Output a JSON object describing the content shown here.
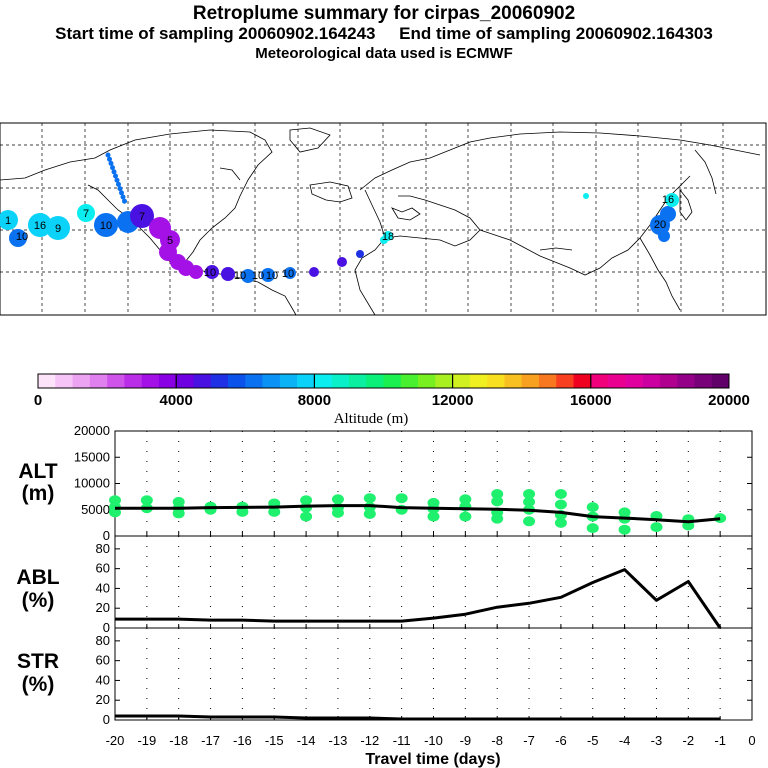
{
  "header": {
    "title": "Retroplume summary for cirpas_20060902",
    "start_label": "Start time of sampling 20060902.164243",
    "end_label": "End time of sampling 20060902.164303",
    "met_label": "Meteorological data used is ECMWF"
  },
  "colorbar": {
    "ticks": [
      "0",
      "4000",
      "8000",
      "12000",
      "16000",
      "20000"
    ],
    "label": "Altitude (m)",
    "min": 0,
    "max": 20000,
    "colors": [
      "#fde3f9",
      "#f6c4f6",
      "#eca3f2",
      "#e07fee",
      "#cf55ea",
      "#bb2ee8",
      "#a411e6",
      "#8a00e4",
      "#6e00e2",
      "#4a12e2",
      "#2030e4",
      "#0a52ea",
      "#0a72f0",
      "#0a92f4",
      "#0ab2f6",
      "#0ad2f8",
      "#0aeef0",
      "#0af0c8",
      "#0af0a0",
      "#0af078",
      "#1af050",
      "#48f030",
      "#78f020",
      "#a8f020",
      "#d0f020",
      "#f0f020",
      "#f8e020",
      "#f8c020",
      "#f8a020",
      "#f87820",
      "#f84020",
      "#f00020",
      "#f0007a",
      "#ea0090",
      "#e000a0",
      "#cc00a0",
      "#b00090",
      "#940088",
      "#780078",
      "#600068"
    ]
  },
  "map": {
    "point_labels": [
      "1",
      "10",
      "16",
      "9",
      "7",
      "10",
      "7",
      "5",
      "10",
      "10",
      "10",
      "10",
      "10",
      "18",
      "16",
      "20"
    ],
    "point_colors": [
      "#0ad2f8",
      "#0a72f0",
      "#4a12e2",
      "#a411e6",
      "#0aeef0",
      "#0a52ea",
      "#2030e4",
      "#6e00e2"
    ]
  },
  "chart_data": [
    {
      "type": "line",
      "title": "ALT (m)",
      "ylabel": "ALT (m)",
      "x": [
        -20,
        -19,
        -18,
        -17,
        -16,
        -15,
        -14,
        -13,
        -12,
        -11,
        -10,
        -9,
        -8,
        -7,
        -6,
        -5,
        -4,
        -3,
        -2,
        -1
      ],
      "values": [
        5300,
        5300,
        5300,
        5400,
        5450,
        5500,
        5700,
        5800,
        5800,
        5400,
        5300,
        5200,
        5100,
        4900,
        4500,
        3700,
        3400,
        3100,
        2700,
        3300
      ],
      "ylim": [
        0,
        20000
      ],
      "yticks": [
        "0",
        "5000",
        "10000",
        "15000",
        "20000"
      ],
      "scatter_points": [
        {
          "x": -20,
          "y": 6800
        },
        {
          "x": -20,
          "y": 5500
        },
        {
          "x": -20,
          "y": 4500
        },
        {
          "x": -19,
          "y": 6800
        },
        {
          "x": -19,
          "y": 5300
        },
        {
          "x": -18,
          "y": 6500
        },
        {
          "x": -18,
          "y": 5300
        },
        {
          "x": -18,
          "y": 4300
        },
        {
          "x": -17,
          "y": 5600
        },
        {
          "x": -17,
          "y": 5000
        },
        {
          "x": -16,
          "y": 5600
        },
        {
          "x": -16,
          "y": 4600
        },
        {
          "x": -15,
          "y": 6200
        },
        {
          "x": -15,
          "y": 4600
        },
        {
          "x": -14,
          "y": 6800
        },
        {
          "x": -14,
          "y": 5400
        },
        {
          "x": -14,
          "y": 3700
        },
        {
          "x": -13,
          "y": 7000
        },
        {
          "x": -13,
          "y": 5400
        },
        {
          "x": -13,
          "y": 4400
        },
        {
          "x": -12,
          "y": 7200
        },
        {
          "x": -12,
          "y": 5500
        },
        {
          "x": -12,
          "y": 4200
        },
        {
          "x": -11,
          "y": 7200
        },
        {
          "x": -11,
          "y": 5000
        },
        {
          "x": -10,
          "y": 6300
        },
        {
          "x": -10,
          "y": 5200
        },
        {
          "x": -10,
          "y": 3700
        },
        {
          "x": -9,
          "y": 7000
        },
        {
          "x": -9,
          "y": 5600
        },
        {
          "x": -9,
          "y": 3700
        },
        {
          "x": -8,
          "y": 8000
        },
        {
          "x": -8,
          "y": 6600
        },
        {
          "x": -8,
          "y": 4500
        },
        {
          "x": -8,
          "y": 3300
        },
        {
          "x": -7,
          "y": 8000
        },
        {
          "x": -7,
          "y": 6500
        },
        {
          "x": -7,
          "y": 5000
        },
        {
          "x": -7,
          "y": 2800
        },
        {
          "x": -6,
          "y": 8000
        },
        {
          "x": -6,
          "y": 6000
        },
        {
          "x": -6,
          "y": 4000
        },
        {
          "x": -6,
          "y": 2500
        },
        {
          "x": -5,
          "y": 5500
        },
        {
          "x": -5,
          "y": 3700
        },
        {
          "x": -5,
          "y": 1500
        },
        {
          "x": -4,
          "y": 4500
        },
        {
          "x": -4,
          "y": 3300
        },
        {
          "x": -4,
          "y": 1200
        },
        {
          "x": -3,
          "y": 3800
        },
        {
          "x": -3,
          "y": 1700
        },
        {
          "x": -2,
          "y": 3200
        },
        {
          "x": -2,
          "y": 2000
        },
        {
          "x": -1,
          "y": 3400
        }
      ]
    },
    {
      "type": "line",
      "title": "ABL (%)",
      "ylabel": "ABL (%)",
      "x": [
        -20,
        -19,
        -18,
        -17,
        -16,
        -15,
        -14,
        -13,
        -12,
        -11,
        -10,
        -9,
        -8,
        -7,
        -6,
        -5,
        -4,
        -3,
        -2,
        -1
      ],
      "values": [
        9,
        9,
        9,
        8,
        8,
        7,
        7,
        7,
        7,
        7,
        10,
        14,
        21,
        25,
        31,
        46,
        59,
        28,
        47,
        0
      ],
      "ylim": [
        0,
        90
      ],
      "yticks": [
        "0",
        "20",
        "40",
        "60",
        "80"
      ]
    },
    {
      "type": "line",
      "title": "STR (%)",
      "ylabel": "STR (%)",
      "x": [
        -20,
        -19,
        -18,
        -17,
        -16,
        -15,
        -14,
        -13,
        -12,
        -11,
        -10,
        -9,
        -8,
        -7,
        -6,
        -5,
        -4,
        -3,
        -2,
        -1
      ],
      "values": [
        4,
        4,
        4,
        3,
        3,
        3,
        2,
        2,
        2,
        1,
        1,
        1,
        1,
        1,
        1,
        1,
        1,
        1,
        1,
        1
      ],
      "ylim": [
        0,
        90
      ],
      "yticks": [
        "0",
        "20",
        "40",
        "60",
        "80"
      ]
    }
  ],
  "panels": {
    "alt_label_1": "ALT",
    "alt_label_2": "(m)",
    "abl_label_1": "ABL",
    "abl_label_2": "(%)",
    "str_label_1": "STR",
    "str_label_2": "(%)"
  },
  "xaxis": {
    "ticks": [
      "-20",
      "-19",
      "-18",
      "-17",
      "-16",
      "-15",
      "-14",
      "-13",
      "-12",
      "-11",
      "-10",
      "-9",
      "-8",
      "-7",
      "-6",
      "-5",
      "-4",
      "-3",
      "-2",
      "-1",
      "0"
    ],
    "label": "Travel time (days)"
  }
}
